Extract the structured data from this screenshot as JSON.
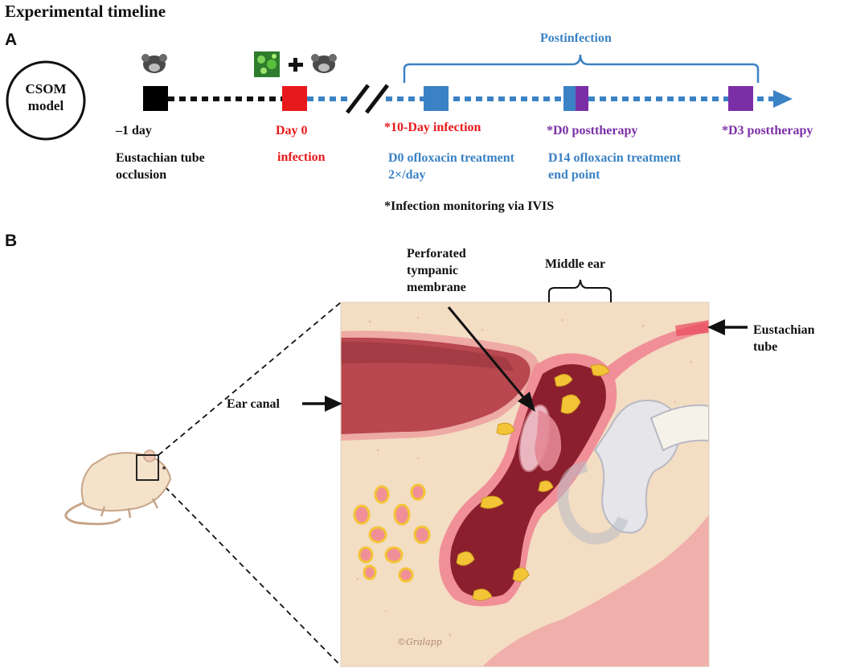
{
  "title": "Experimental timeline",
  "panel_a": {
    "label": "A",
    "model_circle": "CSOM model",
    "postinfection": "Postinfection",
    "events": [
      {
        "time": "–1 day",
        "desc": "Eustachian tube occlusion",
        "color": "#000000"
      },
      {
        "time": "Day 0",
        "desc": "infection",
        "color": "#e8191b"
      },
      {
        "time": "*10-Day infection",
        "desc": "D0 ofloxacin treatment 2×/day",
        "color": "#3b82c4"
      },
      {
        "time": "*D0 posttherapy",
        "desc": "D14 ofloxacin treatment end point",
        "color": "#7b2fa7"
      },
      {
        "time": "*D3 posttherapy",
        "desc": "",
        "color": "#7b2fa7"
      }
    ],
    "monitoring_note": "*Infection monitoring via IVIS",
    "colors": {
      "black": "#000000",
      "red": "#e8191b",
      "blue": "#3b82c4",
      "purple": "#7b2fa7"
    }
  },
  "panel_b": {
    "label": "B",
    "labels": {
      "perforated": "Perforated tympanic membrane",
      "middle_ear": "Middle ear",
      "eustachian": "Eustachian tube",
      "ear_canal": "Ear canal",
      "signature": "©Gralapp"
    }
  }
}
